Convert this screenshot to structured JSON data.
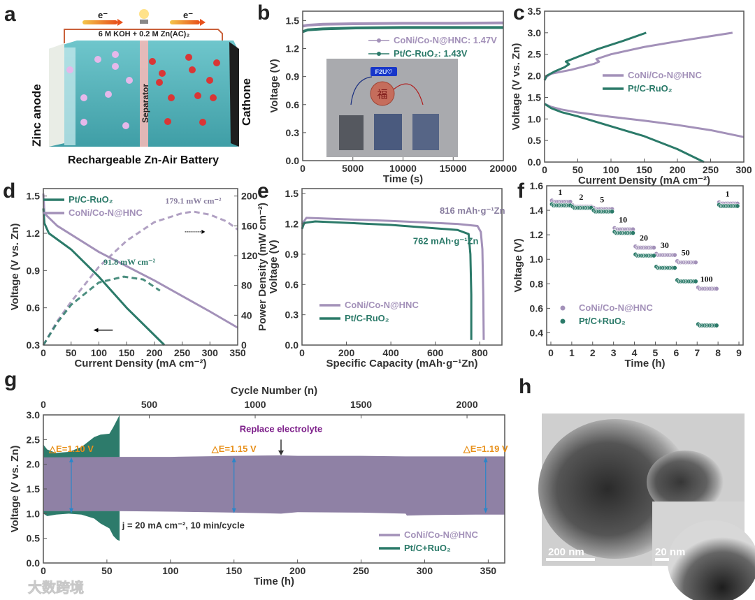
{
  "panel_labels": {
    "a": "a",
    "b": "b",
    "c": "c",
    "d": "d",
    "e": "e",
    "f": "f",
    "g": "g",
    "h": "h"
  },
  "colors": {
    "coni": "#a391b9",
    "pt": "#2b7a69",
    "coni_fill": "#8f81a5",
    "pt_fill": "#2d7b6b",
    "annotation_orange": "#e8901a",
    "annotation_purple": "#7d1f8a",
    "arrow_blue": "#2a86c9"
  },
  "panel_a": {
    "electron_left": "e⁻",
    "electron_right": "e⁻",
    "electrolyte": "6 M KOH + 0.2 M Zn(AC)₂",
    "anode": "Zinc anode",
    "separator": "Separator",
    "cathode": "Cathone",
    "title": "Rechargeable Zn-Air Battery"
  },
  "panel_b_inset": {
    "led_text": "F2U♡",
    "badge_text": "福"
  },
  "panel_h": {
    "scale_main": "200 nm",
    "scale_inset": "20 nm"
  },
  "watermark": "大数跨境",
  "chart_data": [
    {
      "id": "b",
      "type": "line",
      "title": "",
      "xlabel": "Time (s)",
      "ylabel": "Voltage (V)",
      "xlim": [
        0,
        20000
      ],
      "ylim": [
        0,
        1.6
      ],
      "xticks": [
        "0",
        "5000",
        "10000",
        "15000",
        "20000"
      ],
      "yticks": [
        "0.0",
        "0.3",
        "0.6",
        "0.9",
        "1.2",
        "1.5"
      ],
      "legend": [
        "CoNi/Co-N@HNC:  1.47V",
        "Pt/C-RuO₂:  1.43V"
      ],
      "series": [
        {
          "name": "CoNi/Co-N@HNC",
          "key": "coni",
          "x": [
            0,
            500,
            2000,
            5000,
            10000,
            15000,
            20000
          ],
          "y": [
            1.44,
            1.45,
            1.46,
            1.465,
            1.47,
            1.47,
            1.475
          ]
        },
        {
          "name": "Pt/C-RuO₂",
          "key": "pt",
          "x": [
            0,
            500,
            2000,
            5000,
            10000,
            15000,
            20000
          ],
          "y": [
            1.38,
            1.4,
            1.41,
            1.42,
            1.425,
            1.425,
            1.425
          ]
        }
      ]
    },
    {
      "id": "c",
      "type": "line",
      "xlabel": "Current Density (mA cm⁻²)",
      "ylabel": "Voltage (V vs. Zn)",
      "xlim": [
        0,
        300
      ],
      "ylim": [
        0,
        3.5
      ],
      "xticks": [
        "0",
        "50",
        "100",
        "150",
        "200",
        "250",
        "300"
      ],
      "yticks": [
        "0.0",
        "0.5",
        "1.0",
        "1.5",
        "2.0",
        "2.5",
        "3.0",
        "3.5"
      ],
      "legend": [
        "CoNi/Co-N@HNC",
        "Pt/C-RuO₂"
      ],
      "series": [
        {
          "name": "CoNi/Co-N@HNC discharge",
          "key": "coni",
          "x": [
            0,
            10,
            25,
            50,
            100,
            150,
            200,
            250,
            300
          ],
          "y": [
            1.35,
            1.28,
            1.22,
            1.15,
            1.05,
            0.96,
            0.86,
            0.74,
            0.58
          ]
        },
        {
          "name": "CoNi/Co-N@HNC charge",
          "key": "coni",
          "x": [
            0,
            3,
            10,
            40,
            75,
            82,
            78,
            100,
            150,
            200,
            250,
            283
          ],
          "y": [
            1.9,
            1.98,
            2.05,
            2.14,
            2.28,
            2.33,
            2.39,
            2.5,
            2.67,
            2.8,
            2.92,
            3.0
          ]
        },
        {
          "name": "Pt/C-RuO₂ discharge",
          "key": "pt",
          "x": [
            0,
            10,
            25,
            50,
            100,
            150,
            200,
            240
          ],
          "y": [
            1.35,
            1.25,
            1.16,
            1.06,
            0.83,
            0.6,
            0.3,
            0.0
          ]
        },
        {
          "name": "Pt/C-RuO₂ charge",
          "key": "pt",
          "x": [
            0,
            3,
            15,
            30,
            37,
            32,
            50,
            80,
            120,
            153
          ],
          "y": [
            1.9,
            2.0,
            2.1,
            2.2,
            2.27,
            2.33,
            2.44,
            2.62,
            2.82,
            3.0
          ]
        }
      ]
    },
    {
      "id": "d",
      "type": "line",
      "xlabel": "Current Density (mA cm⁻²)",
      "ylabel": "Voltage (V vs. Zn)",
      "y2label": "Power Density (mW cm⁻²)",
      "xlim": [
        0,
        350
      ],
      "ylim": [
        0.3,
        1.56
      ],
      "y2lim": [
        0,
        210
      ],
      "xticks": [
        "0",
        "50",
        "100",
        "150",
        "200",
        "250",
        "300",
        "350"
      ],
      "yticks": [
        "0.3",
        "0.6",
        "0.9",
        "1.2",
        "1.5"
      ],
      "y2ticks": [
        "0",
        "40",
        "80",
        "120",
        "160",
        "200"
      ],
      "legend": [
        "Pt/C-RuO₂",
        "CoNi/Co-N@HNC"
      ],
      "annotations": [
        "179.1 mW cm⁻²",
        "91.8 mW cm⁻²"
      ],
      "series": [
        {
          "name": "CoNi/Co-N@HNC voltage",
          "key": "coni",
          "axis": "y",
          "x": [
            0,
            2,
            25,
            100,
            200,
            300,
            350
          ],
          "y": [
            1.52,
            1.36,
            1.26,
            1.05,
            0.82,
            0.57,
            0.44
          ]
        },
        {
          "name": "Pt/C-RuO₂ voltage",
          "key": "pt",
          "axis": "y",
          "x": [
            0,
            2,
            10,
            50,
            100,
            150,
            218
          ],
          "y": [
            1.4,
            1.28,
            1.2,
            1.07,
            0.85,
            0.6,
            0.3
          ]
        },
        {
          "name": "CoNi/Co-N@HNC power",
          "key": "coni",
          "axis": "y2",
          "dashed": true,
          "x": [
            0,
            25,
            50,
            100,
            150,
            200,
            250,
            270,
            300,
            330,
            350
          ],
          "y": [
            0,
            32,
            58,
            105,
            140,
            165,
            177,
            179.1,
            175,
            166,
            155
          ]
        },
        {
          "name": "Pt/C-RuO₂ power",
          "key": "pt",
          "axis": "y2",
          "dashed": true,
          "x": [
            0,
            25,
            50,
            100,
            145,
            180,
            210
          ],
          "y": [
            0,
            30,
            54,
            84,
            91.8,
            88,
            73
          ]
        }
      ]
    },
    {
      "id": "e",
      "type": "line",
      "xlabel": "Specific Capacity (mAh·g⁻¹Zn)",
      "ylabel": "Voltage (V)",
      "xlim": [
        0,
        900
      ],
      "ylim": [
        0,
        1.55
      ],
      "xticks": [
        "0",
        "200",
        "400",
        "600",
        "800"
      ],
      "yticks": [
        "0.0",
        "0.3",
        "0.6",
        "0.9",
        "1.2",
        "1.5"
      ],
      "legend": [
        "CoNi/Co-N@HNC",
        "Pt/C-RuO₂"
      ],
      "annotations": [
        "816 mAh·g⁻¹Zn",
        "762 mAh·g⁻¹Zn"
      ],
      "series": [
        {
          "name": "CoNi/Co-N@HNC",
          "key": "coni",
          "x": [
            0,
            20,
            400,
            700,
            790,
            805,
            812,
            816,
            818
          ],
          "y": [
            1.2,
            1.26,
            1.23,
            1.2,
            1.18,
            1.12,
            0.95,
            0.5,
            0.05
          ]
        },
        {
          "name": "Pt/C-RuO₂",
          "key": "pt",
          "x": [
            0,
            10,
            60,
            400,
            700,
            750,
            758,
            762,
            762
          ],
          "y": [
            1.15,
            1.21,
            1.225,
            1.19,
            1.14,
            1.1,
            0.9,
            0.5,
            0.05
          ]
        }
      ]
    },
    {
      "id": "f",
      "type": "scatter",
      "xlabel": "Time (h)",
      "ylabel": "Voltage (V)",
      "xlim": [
        -0.2,
        9.2
      ],
      "ylim": [
        0.3,
        1.6
      ],
      "xticks": [
        "0",
        "1",
        "2",
        "3",
        "4",
        "5",
        "6",
        "7",
        "8",
        "9"
      ],
      "yticks": [
        "0.4",
        "0.6",
        "0.8",
        "1.0",
        "1.2",
        "1.4",
        "1.6"
      ],
      "legend": [
        "CoNi/Co-N@HNC",
        "Pt/C+RuO₂"
      ],
      "current_densities": [
        "1",
        "2",
        "5",
        "10",
        "20",
        "30",
        "50",
        "100",
        "1"
      ],
      "series": [
        {
          "name": "CoNi/Co-N@HNC",
          "key": "coni",
          "y": [
            1.47,
            1.43,
            1.41,
            1.245,
            1.095,
            1.035,
            0.975,
            0.76,
            1.455
          ]
        },
        {
          "name": "Pt/C+RuO₂",
          "key": "pt",
          "y": [
            1.44,
            1.42,
            1.39,
            1.215,
            1.03,
            0.93,
            0.82,
            0.46,
            1.435
          ]
        }
      ]
    },
    {
      "id": "g",
      "type": "area",
      "xlabel": "Time (h)",
      "ylabel": "Voltage (V vs. Zn)",
      "x2label": "Cycle Number (n)",
      "xlim": [
        0,
        363
      ],
      "ylim": [
        0,
        3.0
      ],
      "x2lim": [
        0,
        2178
      ],
      "xticks": [
        "0",
        "50",
        "100",
        "150",
        "200",
        "250",
        "300",
        "350"
      ],
      "x2ticks": [
        "0",
        "500",
        "1000",
        "1500",
        "2000"
      ],
      "yticks": [
        "0.0",
        "0.5",
        "1.0",
        "1.5",
        "2.0",
        "2.5",
        "3.0"
      ],
      "legend": [
        "CoNi/Co-N@HNC",
        "Pt/C+RuO₂"
      ],
      "annotations": {
        "replace": "Replace electrolyte",
        "replace_time_h": 187,
        "condition": "j = 20 mA cm⁻², 10 min/cycle",
        "delta": [
          {
            "label": "△E=1.10 V",
            "time_h": 22
          },
          {
            "label": "△E=1.15 V",
            "time_h": 150
          },
          {
            "label": "△E=1.19 V",
            "time_h": 348
          }
        ]
      },
      "series": [
        {
          "name": "Pt/C+RuO₂",
          "key": "pt",
          "x": [
            0,
            3,
            10,
            20,
            30,
            40,
            45,
            52,
            55,
            58,
            60
          ],
          "upper": [
            2.4,
            2.3,
            2.23,
            2.25,
            2.35,
            2.55,
            2.6,
            2.62,
            2.75,
            2.9,
            3.0
          ],
          "lower": [
            1.0,
            0.95,
            0.98,
            1.0,
            0.98,
            0.9,
            0.8,
            0.7,
            0.55,
            0.47,
            0.45
          ]
        },
        {
          "name": "CoNi/Co-N@HNC",
          "key": "coni",
          "x": [
            0,
            60,
            100,
            150,
            187,
            200,
            250,
            285,
            286,
            300,
            340,
            363
          ],
          "upper": [
            2.14,
            2.15,
            2.15,
            2.17,
            2.18,
            2.17,
            2.17,
            2.16,
            2.16,
            2.16,
            2.16,
            2.16
          ],
          "lower": [
            1.05,
            1.05,
            1.04,
            1.02,
            1.0,
            1.03,
            1.02,
            1.0,
            0.96,
            0.97,
            0.98,
            0.98
          ]
        }
      ]
    }
  ]
}
